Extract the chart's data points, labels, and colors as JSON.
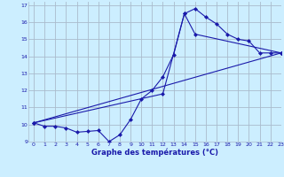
{
  "title": "Graphe des températures (°C)",
  "xlim": [
    -0.5,
    23
  ],
  "ylim": [
    9,
    17.2
  ],
  "yticks": [
    9,
    10,
    11,
    12,
    13,
    14,
    15,
    16,
    17
  ],
  "xticks": [
    0,
    1,
    2,
    3,
    4,
    5,
    6,
    7,
    8,
    9,
    10,
    11,
    12,
    13,
    14,
    15,
    16,
    17,
    18,
    19,
    20,
    21,
    22,
    23
  ],
  "background_color": "#cceeff",
  "grid_color": "#aabbcc",
  "line_color": "#1a1aaa",
  "line1_x": [
    0,
    1,
    2,
    3,
    4,
    5,
    6,
    7,
    8,
    9,
    10,
    11,
    12,
    13,
    14,
    15,
    16,
    17,
    18,
    19,
    20,
    21,
    22,
    23
  ],
  "line1_y": [
    10.1,
    9.9,
    9.9,
    9.8,
    9.55,
    9.6,
    9.65,
    9.0,
    9.4,
    10.3,
    11.5,
    12.0,
    12.8,
    14.1,
    16.5,
    16.8,
    16.3,
    15.9,
    15.3,
    15.0,
    14.9,
    14.2,
    14.2,
    14.2
  ],
  "line2_x": [
    0,
    12,
    14,
    15,
    23
  ],
  "line2_y": [
    10.1,
    11.8,
    16.5,
    15.3,
    14.2
  ],
  "line3_x": [
    0,
    23
  ],
  "line3_y": [
    10.1,
    14.2
  ],
  "figsize": [
    3.2,
    2.0
  ],
  "dpi": 100
}
